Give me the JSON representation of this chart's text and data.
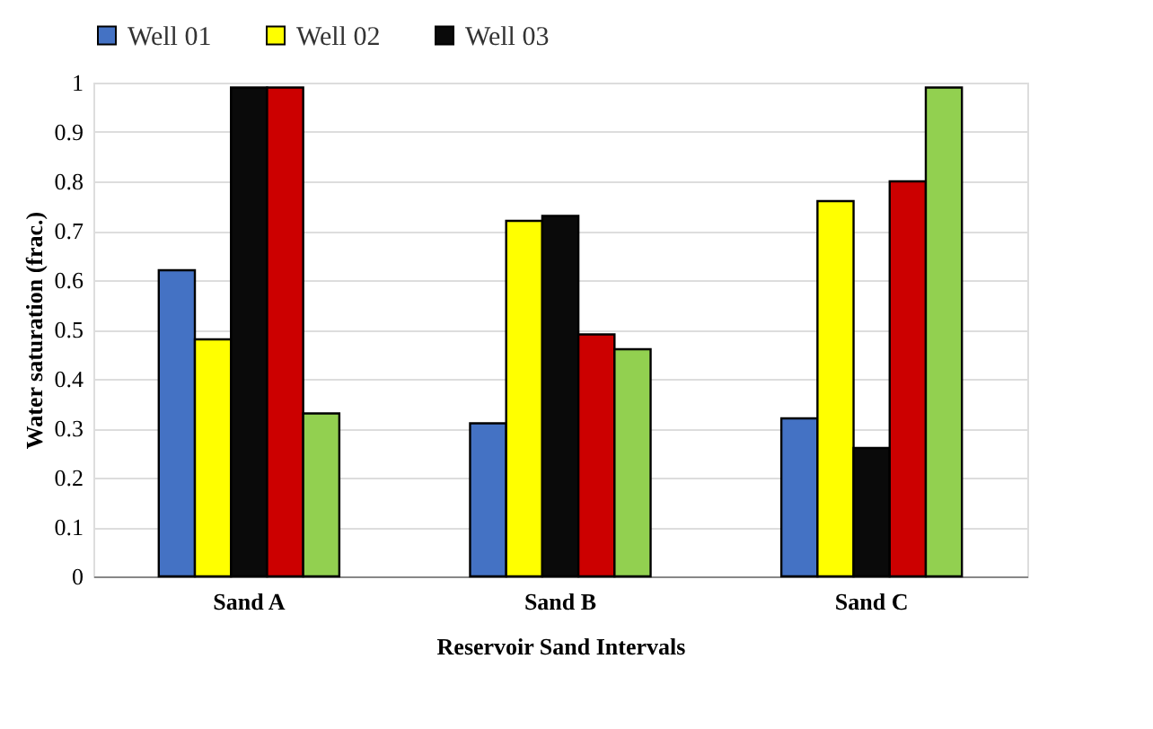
{
  "chart_data": {
    "type": "bar",
    "xlabel": "Reservoir Sand Intervals",
    "ylabel": "Water saturation (frac.)",
    "categories": [
      "Sand A",
      "Sand B",
      "Sand C"
    ],
    "series": [
      {
        "name": "Well 01",
        "color": "#4472c4",
        "values": [
          0.62,
          0.31,
          0.32
        ]
      },
      {
        "name": "Well 02",
        "color": "#ffff00",
        "values": [
          0.48,
          0.72,
          0.76
        ]
      },
      {
        "name": "Well 03",
        "color": "#0a0a0a",
        "values": [
          0.99,
          0.73,
          0.26
        ]
      },
      {
        "color": "#cc0000",
        "values": [
          0.99,
          0.49,
          0.8
        ]
      },
      {
        "color": "#92d050",
        "values": [
          0.33,
          0.46,
          0.99
        ]
      }
    ],
    "ylim": [
      0,
      1
    ],
    "yticks": [
      0,
      0.1,
      0.2,
      0.3,
      0.4,
      0.5,
      0.6,
      0.7,
      0.8,
      0.9,
      1
    ],
    "grid": "y",
    "legend": "top"
  }
}
